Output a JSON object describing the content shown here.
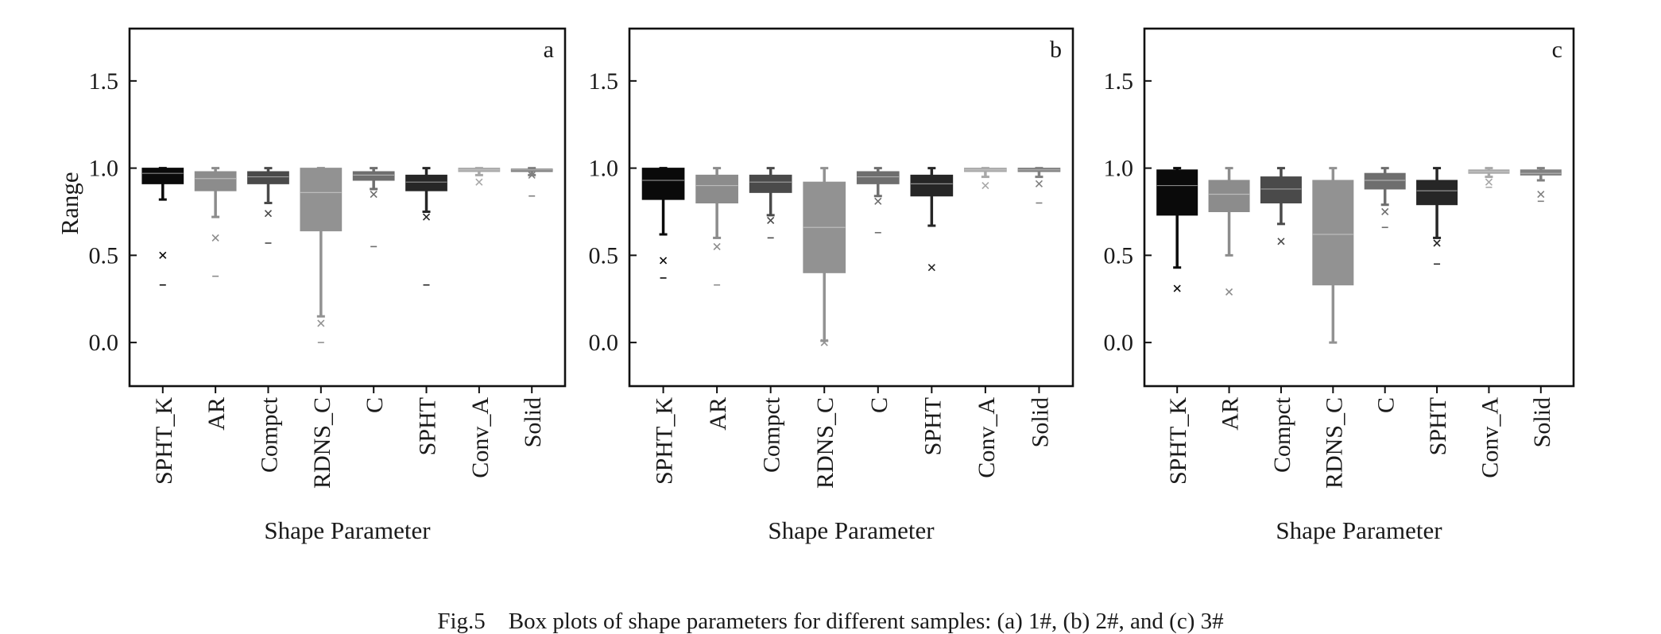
{
  "chart_data": [
    {
      "type": "box",
      "panel_label": "a",
      "ylabel": "Range",
      "xlabel": "Shape Parameter",
      "ylim": [
        -0.25,
        1.8
      ],
      "yticks": [
        0.0,
        0.5,
        1.0,
        1.5
      ],
      "ytick_labels": [
        "0.0",
        "0.5",
        "1.0",
        "1.5"
      ],
      "categories": [
        "SPHT_K",
        "AR",
        "Compct",
        "RDNS_C",
        "C",
        "SPHT",
        "Conv_A",
        "Solid"
      ],
      "colors": [
        "#0a0a0a",
        "#8c8c8c",
        "#4a4a4a",
        "#929292",
        "#6e6e6e",
        "#262626",
        "#a8a8a8",
        "#808080"
      ],
      "boxes": [
        {
          "q1": 0.91,
          "median": 0.97,
          "q3": 1.0,
          "whisker_low": 0.82,
          "whisker_high": 1.0,
          "outliers": [
            0.5,
            0.33
          ]
        },
        {
          "q1": 0.87,
          "median": 0.94,
          "q3": 0.98,
          "whisker_low": 0.72,
          "whisker_high": 1.0,
          "outliers": [
            0.6,
            0.38
          ]
        },
        {
          "q1": 0.91,
          "median": 0.95,
          "q3": 0.98,
          "whisker_low": 0.8,
          "whisker_high": 1.0,
          "outliers": [
            0.74,
            0.57
          ]
        },
        {
          "q1": 0.64,
          "median": 0.86,
          "q3": 1.0,
          "whisker_low": 0.15,
          "whisker_high": 1.0,
          "outliers": [
            0.11,
            0.0
          ]
        },
        {
          "q1": 0.93,
          "median": 0.96,
          "q3": 0.98,
          "whisker_low": 0.88,
          "whisker_high": 1.0,
          "outliers": [
            0.85,
            0.55
          ]
        },
        {
          "q1": 0.87,
          "median": 0.92,
          "q3": 0.96,
          "whisker_low": 0.75,
          "whisker_high": 1.0,
          "outliers": [
            0.72,
            0.33
          ]
        },
        {
          "q1": 0.98,
          "median": 0.99,
          "q3": 1.0,
          "whisker_low": 0.96,
          "whisker_high": 1.0,
          "outliers": [
            0.92
          ]
        },
        {
          "q1": 0.98,
          "median": 0.99,
          "q3": 0.995,
          "whisker_low": 0.96,
          "whisker_high": 1.0,
          "outliers": [
            0.96,
            0.84
          ]
        }
      ]
    },
    {
      "type": "box",
      "panel_label": "b",
      "ylabel": "",
      "xlabel": "Shape Parameter",
      "ylim": [
        -0.25,
        1.8
      ],
      "yticks": [
        0.0,
        0.5,
        1.0,
        1.5
      ],
      "ytick_labels": [
        "0.0",
        "0.5",
        "1.0",
        "1.5"
      ],
      "categories": [
        "SPHT_K",
        "AR",
        "Compct",
        "RDNS_C",
        "C",
        "SPHT",
        "Conv_A",
        "Solid"
      ],
      "colors": [
        "#0a0a0a",
        "#8c8c8c",
        "#4a4a4a",
        "#929292",
        "#6e6e6e",
        "#262626",
        "#a8a8a8",
        "#808080"
      ],
      "boxes": [
        {
          "q1": 0.82,
          "median": 0.93,
          "q3": 1.0,
          "whisker_low": 0.62,
          "whisker_high": 1.0,
          "outliers": [
            0.47,
            0.37
          ]
        },
        {
          "q1": 0.8,
          "median": 0.9,
          "q3": 0.96,
          "whisker_low": 0.6,
          "whisker_high": 1.0,
          "outliers": [
            0.55,
            0.33
          ]
        },
        {
          "q1": 0.86,
          "median": 0.92,
          "q3": 0.96,
          "whisker_low": 0.73,
          "whisker_high": 1.0,
          "outliers": [
            0.7,
            0.6
          ]
        },
        {
          "q1": 0.4,
          "median": 0.66,
          "q3": 0.92,
          "whisker_low": 0.01,
          "whisker_high": 1.0,
          "outliers": [
            0.0
          ]
        },
        {
          "q1": 0.91,
          "median": 0.95,
          "q3": 0.98,
          "whisker_low": 0.84,
          "whisker_high": 1.0,
          "outliers": [
            0.81,
            0.63
          ]
        },
        {
          "q1": 0.84,
          "median": 0.91,
          "q3": 0.96,
          "whisker_low": 0.67,
          "whisker_high": 1.0,
          "outliers": [
            0.43
          ]
        },
        {
          "q1": 0.98,
          "median": 0.99,
          "q3": 1.0,
          "whisker_low": 0.95,
          "whisker_high": 1.0,
          "outliers": [
            0.9
          ]
        },
        {
          "q1": 0.98,
          "median": 0.99,
          "q3": 1.0,
          "whisker_low": 0.95,
          "whisker_high": 1.0,
          "outliers": [
            0.91,
            0.8
          ]
        }
      ]
    },
    {
      "type": "box",
      "panel_label": "c",
      "ylabel": "",
      "xlabel": "Shape Parameter",
      "ylim": [
        -0.25,
        1.8
      ],
      "yticks": [
        0.0,
        0.5,
        1.0,
        1.5
      ],
      "ytick_labels": [
        "0.0",
        "0.5",
        "1.0",
        "1.5"
      ],
      "categories": [
        "SPHT_K",
        "AR",
        "Compct",
        "RDNS_C",
        "C",
        "SPHT",
        "Conv_A",
        "Solid"
      ],
      "colors": [
        "#0a0a0a",
        "#8c8c8c",
        "#4a4a4a",
        "#929292",
        "#6e6e6e",
        "#262626",
        "#a8a8a8",
        "#808080"
      ],
      "boxes": [
        {
          "q1": 0.73,
          "median": 0.9,
          "q3": 0.99,
          "whisker_low": 0.43,
          "whisker_high": 1.0,
          "outliers": [
            0.31
          ]
        },
        {
          "q1": 0.75,
          "median": 0.85,
          "q3": 0.93,
          "whisker_low": 0.5,
          "whisker_high": 1.0,
          "outliers": [
            0.29
          ]
        },
        {
          "q1": 0.8,
          "median": 0.88,
          "q3": 0.95,
          "whisker_low": 0.68,
          "whisker_high": 1.0,
          "outliers": [
            0.58
          ]
        },
        {
          "q1": 0.33,
          "median": 0.62,
          "q3": 0.93,
          "whisker_low": 0.0,
          "whisker_high": 1.0,
          "outliers": []
        },
        {
          "q1": 0.88,
          "median": 0.93,
          "q3": 0.97,
          "whisker_low": 0.79,
          "whisker_high": 1.0,
          "outliers": [
            0.75,
            0.66
          ]
        },
        {
          "q1": 0.79,
          "median": 0.87,
          "q3": 0.93,
          "whisker_low": 0.6,
          "whisker_high": 1.0,
          "outliers": [
            0.57,
            0.45
          ]
        },
        {
          "q1": 0.97,
          "median": 0.98,
          "q3": 0.99,
          "whisker_low": 0.95,
          "whisker_high": 1.0,
          "outliers": [
            0.92,
            0.89
          ]
        },
        {
          "q1": 0.96,
          "median": 0.97,
          "q3": 0.99,
          "whisker_low": 0.93,
          "whisker_high": 1.0,
          "outliers": [
            0.85,
            0.81
          ]
        }
      ]
    }
  ],
  "caption": "Fig.5    Box plots of shape parameters for different samples: (a) 1#, (b) 2#, and (c) 3#"
}
